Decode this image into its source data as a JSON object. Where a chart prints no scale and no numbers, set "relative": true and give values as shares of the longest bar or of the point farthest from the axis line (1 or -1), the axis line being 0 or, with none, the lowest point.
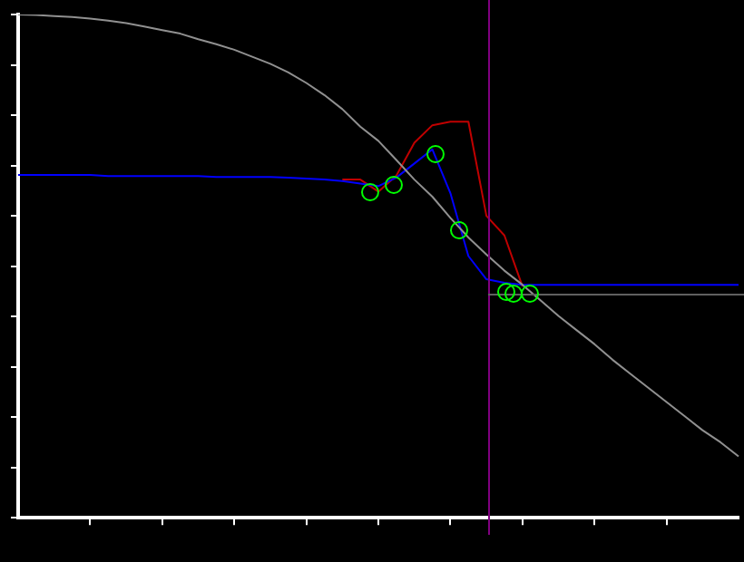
{
  "chart_data": {
    "type": "line",
    "relative": true,
    "grid": false,
    "legend": false,
    "line_style": "solid",
    "categories": [
      null,
      null,
      null,
      null,
      null,
      null,
      null,
      null,
      null,
      null,
      null,
      null,
      null,
      null,
      null,
      null,
      null,
      null,
      null,
      null,
      null,
      null,
      null,
      null,
      null,
      null,
      null,
      null,
      null,
      null,
      null,
      null,
      null,
      null,
      null,
      null,
      null,
      null,
      null,
      null,
      null
    ],
    "series": [
      {
        "type": "line",
        "color": "#909090",
        "values": [
          1,
          0.999,
          0.997,
          0.995,
          0.992,
          0.988,
          0.983,
          0.976,
          0.969,
          0.962,
          0.951,
          0.941,
          0.93,
          0.916,
          0.902,
          0.885,
          0.864,
          0.84,
          0.812,
          0.777,
          0.749,
          0.711,
          0.672,
          0.638,
          0.596,
          0.557,
          0.523,
          0.491,
          0.463,
          0.432,
          0.401,
          0.373,
          0.345,
          0.314,
          0.286,
          0.258,
          0.23,
          0.202,
          0.174,
          0.15,
          0.122
        ]
      },
      {
        "type": "line",
        "color": "#0000ff",
        "values": [
          0.681,
          0.681,
          0.681,
          0.681,
          0.681,
          0.679,
          0.679,
          0.679,
          0.679,
          0.679,
          0.679,
          0.677,
          0.677,
          0.677,
          0.677,
          0.676,
          0.674,
          0.672,
          0.669,
          0.664,
          0.659,
          0.676,
          0.704,
          0.732,
          0.645,
          0.52,
          0.474,
          0.467,
          0.463,
          0.463,
          0.463,
          0.463,
          0.463,
          0.463,
          0.463,
          0.463,
          0.463,
          0.463,
          0.463,
          0.463,
          0.463
        ]
      },
      {
        "type": "line",
        "color": "#c00000",
        "values": [
          null,
          null,
          null,
          null,
          null,
          null,
          null,
          null,
          null,
          null,
          null,
          null,
          null,
          null,
          null,
          null,
          null,
          null,
          0.672,
          0.672,
          0.648,
          0.68,
          0.745,
          0.78,
          0.787,
          0.787,
          0.6,
          0.561,
          0.46,
          null,
          null,
          null,
          null,
          null,
          null,
          null,
          null,
          null,
          null,
          null,
          null
        ]
      }
    ]
  }
}
